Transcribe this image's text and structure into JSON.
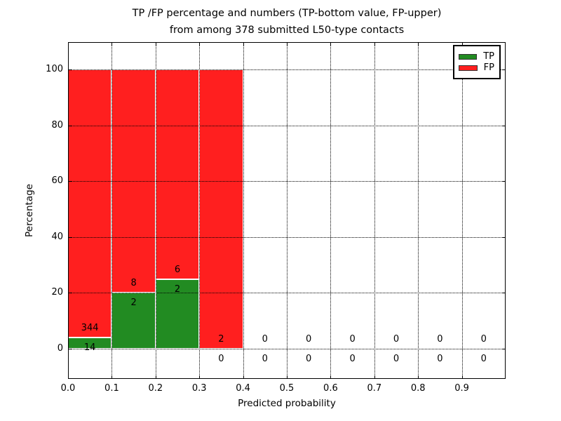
{
  "title": {
    "line1": "TP /FP percentage and numbers (TP-bottom value, FP-upper)",
    "line2": "from among 378 submitted L50-type contacts"
  },
  "axes": {
    "xlabel": "Predicted probability",
    "ylabel": "Percentage",
    "x_tick_labels": [
      "0.0",
      "0.1",
      "0.2",
      "0.3",
      "0.4",
      "0.5",
      "0.6",
      "0.7",
      "0.8",
      "0.9"
    ],
    "y_tick_labels": [
      "0",
      "20",
      "40",
      "60",
      "80",
      "100"
    ],
    "y_tick_values": [
      0,
      20,
      40,
      60,
      80,
      100
    ]
  },
  "legend": {
    "items": [
      {
        "label": "TP",
        "color": "#228b22"
      },
      {
        "label": "FP",
        "color": "#ff1f1f"
      }
    ]
  },
  "chart_data": {
    "type": "bar",
    "stacked": true,
    "normalized": "percent of each bin total",
    "title": "TP /FP percentage and numbers (TP-bottom value, FP-upper) from among 378 submitted L50-type contacts",
    "xlabel": "Predicted probability",
    "ylabel": "Percentage",
    "xlim": [
      0.0,
      1.0
    ],
    "ylim": [
      -11,
      110
    ],
    "grid": "dotted",
    "legend_position": "upper right",
    "total_submitted": 378,
    "bin_width": 0.1,
    "bin_starts": [
      0.0,
      0.1,
      0.2,
      0.3,
      0.4,
      0.5,
      0.6,
      0.7,
      0.8,
      0.9
    ],
    "series": [
      {
        "name": "TP",
        "color": "#228b22",
        "counts": [
          14,
          2,
          2,
          0,
          0,
          0,
          0,
          0,
          0,
          0
        ]
      },
      {
        "name": "FP",
        "color": "#ff1f1f",
        "counts": [
          344,
          8,
          6,
          2,
          0,
          0,
          0,
          0,
          0,
          0
        ]
      }
    ],
    "tp_percent": [
      3.91,
      20.0,
      25.0,
      0.0,
      0.0,
      0.0,
      0.0,
      0.0,
      0.0,
      0.0
    ],
    "fp_percent": [
      96.09,
      80.0,
      75.0,
      100.0,
      0.0,
      0.0,
      0.0,
      0.0,
      0.0,
      0.0
    ]
  }
}
